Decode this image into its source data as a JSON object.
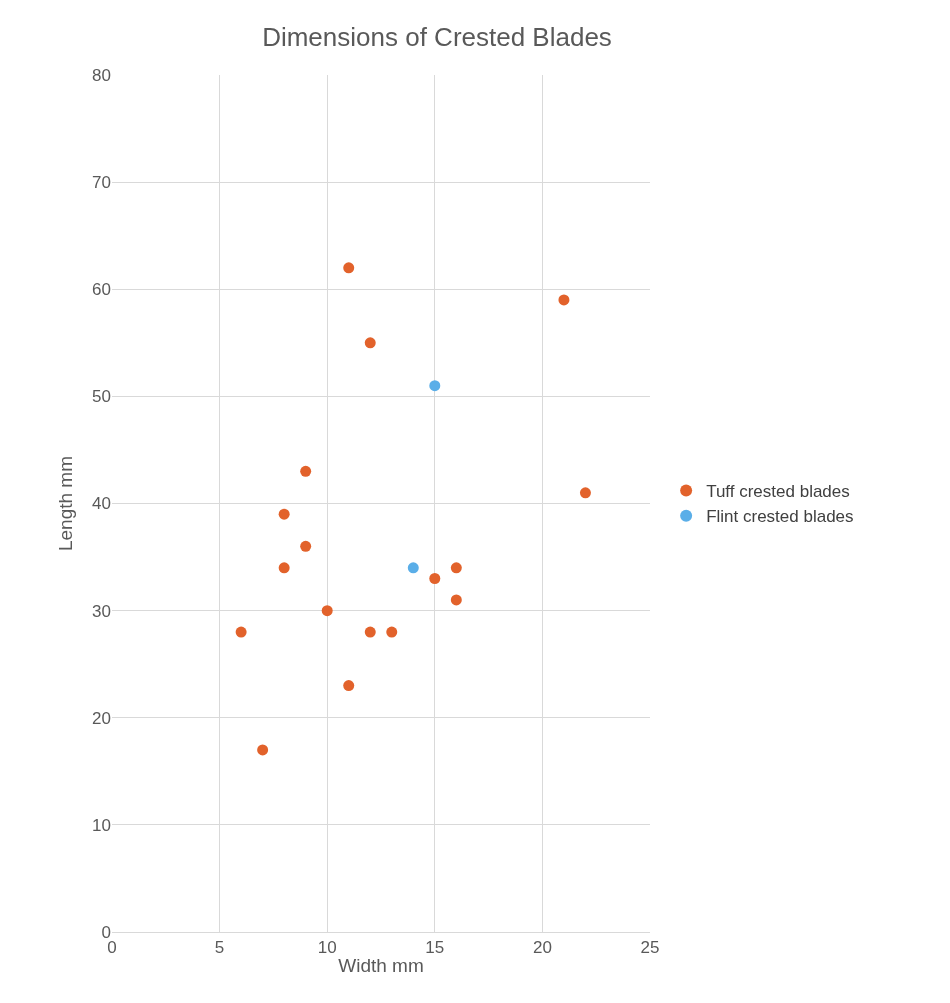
{
  "chart_data": {
    "type": "scatter",
    "title": "Dimensions of Crested Blades",
    "xlabel": "Width mm",
    "ylabel": "Length mm",
    "xlim": [
      0,
      25
    ],
    "xticks": [
      0,
      5,
      10,
      15,
      20,
      25
    ],
    "ylim": [
      0,
      80
    ],
    "yticks": [
      0,
      10,
      20,
      30,
      40,
      50,
      60,
      70,
      80
    ],
    "grid": true,
    "legend": "right",
    "marker": "circle",
    "series": [
      {
        "name": "Tuff crested blades",
        "color": "#e2622b",
        "x": [
          11,
          12,
          21,
          9,
          22,
          8,
          9,
          8,
          16,
          15,
          16,
          10,
          6,
          12,
          13,
          11,
          7
        ],
        "values": [
          62,
          55,
          59,
          43,
          41,
          39,
          36,
          34,
          34,
          33,
          31,
          30,
          28,
          28,
          28,
          23,
          17
        ]
      },
      {
        "name": "Flint crested blades",
        "color": "#5aaee8",
        "x": [
          15,
          14
        ],
        "values": [
          51,
          34
        ]
      }
    ]
  }
}
